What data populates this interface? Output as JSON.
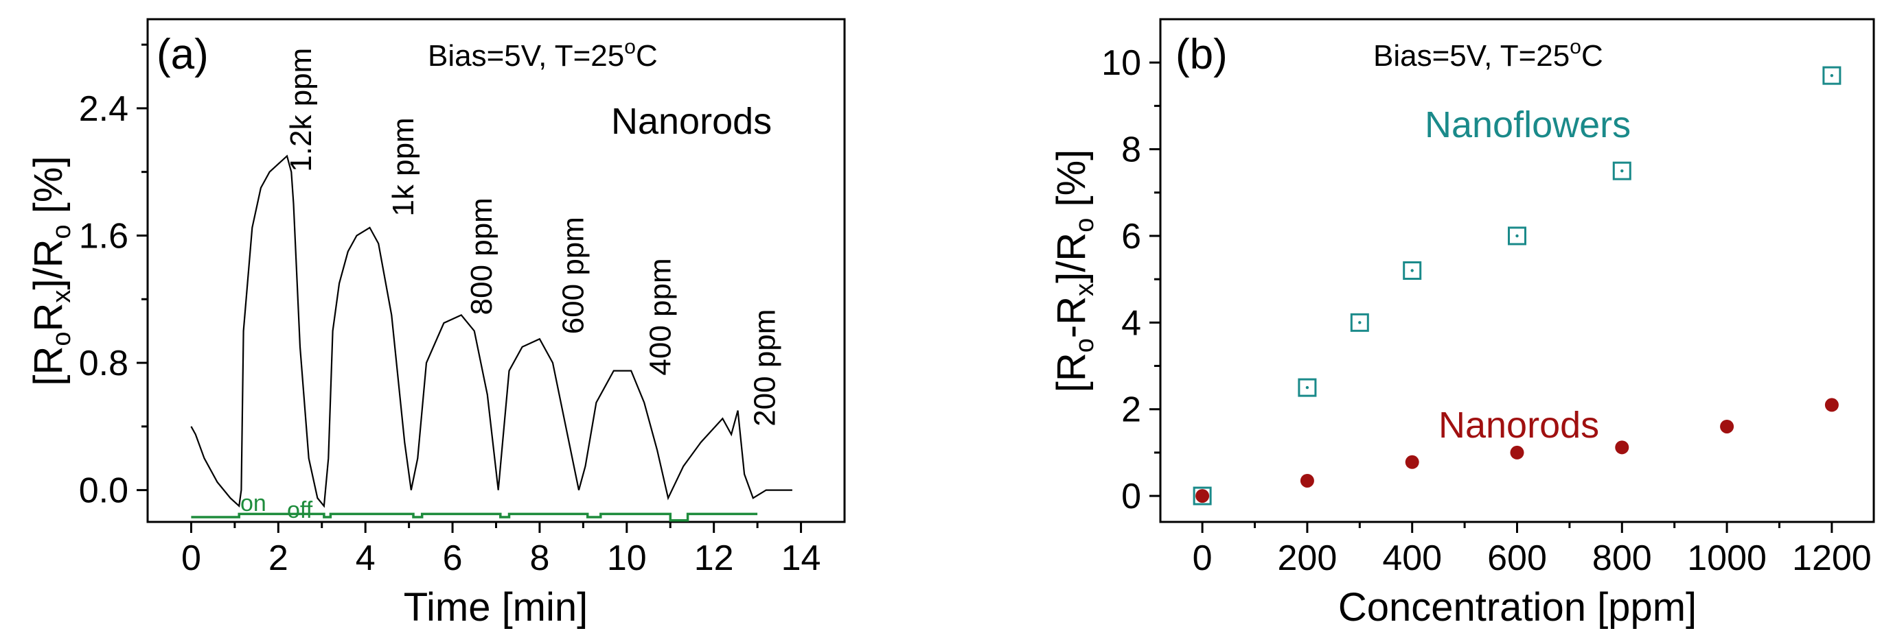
{
  "chart_data": [
    {
      "type": "line",
      "panel": "(a)",
      "condition": "Bias=5V, T=25°C",
      "series_label": "Nanorods",
      "xlabel": "Time [min]",
      "ylabel": "[R",
      "xlim": [
        -1,
        15
      ],
      "ylim": [
        -0.2,
        2.96
      ],
      "xticks": [
        0,
        2,
        4,
        6,
        8,
        10,
        12,
        14
      ],
      "yticks": [
        0.0,
        0.8,
        1.6,
        2.4
      ],
      "ytick_labels": [
        "0.0",
        "0.8",
        "1.6",
        "2.4"
      ],
      "series": [
        {
          "name": "Nanorods response",
          "color": "#000000",
          "x": [
            0.0,
            0.1,
            0.3,
            0.6,
            0.9,
            1.1,
            1.15,
            1.2,
            1.4,
            1.6,
            1.8,
            2.0,
            2.2,
            2.3,
            2.35,
            2.5,
            2.7,
            2.9,
            3.05,
            3.15,
            3.25,
            3.4,
            3.6,
            3.8,
            4.1,
            4.3,
            4.6,
            4.9,
            5.05,
            5.2,
            5.4,
            5.8,
            6.2,
            6.5,
            6.8,
            7.05,
            7.15,
            7.3,
            7.6,
            8.0,
            8.3,
            8.6,
            8.9,
            9.05,
            9.3,
            9.7,
            10.1,
            10.4,
            10.7,
            10.95,
            11.3,
            11.7,
            12.2,
            12.4,
            12.55,
            12.7,
            12.9,
            13.2,
            13.5,
            13.8
          ],
          "y": [
            0.4,
            0.35,
            0.2,
            0.05,
            -0.05,
            -0.1,
            0.0,
            1.0,
            1.65,
            1.9,
            2.0,
            2.05,
            2.1,
            2.0,
            1.8,
            0.9,
            0.2,
            -0.05,
            -0.1,
            0.2,
            1.0,
            1.3,
            1.5,
            1.6,
            1.65,
            1.55,
            1.1,
            0.3,
            0.0,
            0.2,
            0.8,
            1.05,
            1.1,
            1.0,
            0.6,
            0.0,
            0.3,
            0.75,
            0.9,
            0.95,
            0.8,
            0.4,
            0.0,
            0.15,
            0.55,
            0.75,
            0.75,
            0.55,
            0.25,
            -0.05,
            0.15,
            0.3,
            0.45,
            0.35,
            0.5,
            0.1,
            -0.05,
            0.0,
            0.0,
            0.0
          ]
        },
        {
          "name": "Gas on/off",
          "color": "#1e8c3c",
          "x": [
            0,
            1.1,
            1.1,
            3.05,
            3.05,
            3.2,
            3.2,
            5.1,
            5.1,
            5.3,
            5.3,
            7.1,
            7.1,
            7.3,
            7.3,
            9.1,
            9.1,
            9.4,
            9.4,
            11.0,
            11.0,
            11.4,
            11.4,
            13.0
          ],
          "y": [
            -0.17,
            -0.17,
            -0.15,
            -0.15,
            -0.17,
            -0.17,
            -0.15,
            -0.15,
            -0.17,
            -0.17,
            -0.15,
            -0.15,
            -0.17,
            -0.17,
            -0.15,
            -0.15,
            -0.17,
            -0.17,
            -0.15,
            -0.15,
            -0.19,
            -0.19,
            -0.15,
            -0.15
          ]
        }
      ],
      "annotations": [
        {
          "text": "1.2k ppm",
          "x": 2.75,
          "y": 2.0
        },
        {
          "text": "1k ppm",
          "x": 5.1,
          "y": 1.72
        },
        {
          "text": "800 ppm",
          "x": 6.9,
          "y": 1.1
        },
        {
          "text": "600 ppm",
          "x": 9.0,
          "y": 0.98
        },
        {
          "text": "400 ppm",
          "x": 11.0,
          "y": 0.72
        },
        {
          "text": "200 ppm",
          "x": 13.4,
          "y": 0.4
        }
      ],
      "on_label": "on",
      "off_label": "off",
      "on_color": "#1e8c3c"
    },
    {
      "type": "scatter",
      "panel": "(b)",
      "condition": "Bias=5V, T=25°C",
      "xlabel": "Concentration [ppm]",
      "ylabel": "[R",
      "xlim": [
        -80,
        1280
      ],
      "ylim": [
        -0.6,
        11
      ],
      "xticks": [
        0,
        200,
        400,
        600,
        800,
        1000,
        1200
      ],
      "yticks": [
        0,
        2,
        4,
        6,
        8,
        10
      ],
      "series": [
        {
          "name": "Nanoflowers",
          "marker": "open-square",
          "color": "#1a8a8a",
          "x": [
            0,
            200,
            300,
            400,
            600,
            800,
            1200
          ],
          "y": [
            0.0,
            2.5,
            4.0,
            5.2,
            6.0,
            7.5,
            9.7
          ]
        },
        {
          "name": "Nanorods",
          "marker": "filled-circle",
          "color": "#a01010",
          "x": [
            0,
            200,
            400,
            600,
            800,
            1000,
            1200
          ],
          "y": [
            0.0,
            0.35,
            0.78,
            1.0,
            1.12,
            1.6,
            2.1
          ]
        }
      ]
    }
  ],
  "ylabel_a": {
    "p1": "[R",
    "s1": "o",
    "p2": "R",
    "s2": "x",
    "p3": "]/R",
    "s3": "o",
    "p4": " [%]"
  },
  "ylabel_b": {
    "p1": "[R",
    "s1": "o",
    "p2": "-R",
    "s2": "x",
    "p3": "]/R",
    "s3": "o",
    "p4": " [%]"
  },
  "cond_parts": {
    "pre": "Bias=5V, T=25",
    "sup": "o",
    "post": "C"
  }
}
